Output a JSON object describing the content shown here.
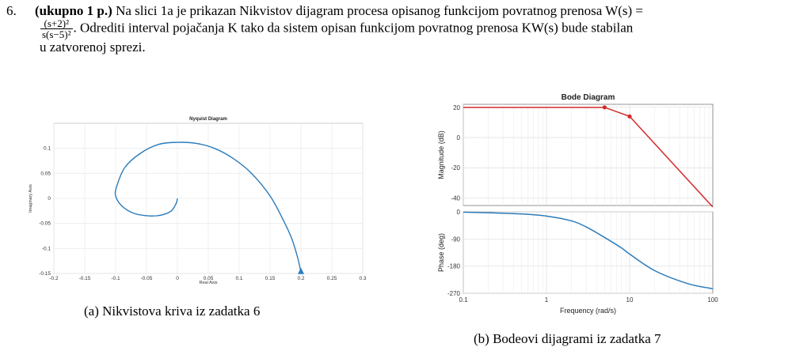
{
  "problem": {
    "number": "6.",
    "points": "(ukupno 1 p.)",
    "text1": "Na slici 1a je prikazan Nikvistov dijagram procesa opisanog funkcijom povratnog prenosa W(s) =",
    "frac_num": "(s+2)²",
    "frac_den": "s(s−5)²",
    "text2": ". Odrediti interval pojačanja K tako da sistem opisan funkcijom povratnog prenosa KW(s) bude stabilan",
    "text3": "u zatvorenoj sprezi."
  },
  "captions": {
    "a": "(a) Nikvistova kriva iz zadatka 6",
    "b": "(b) Bodeovi dijagrami iz zadatka 7"
  },
  "chart_data": [
    {
      "type": "line",
      "title": "Nyquist Diagram",
      "xlabel": "Real Axis",
      "ylabel": "Imaginary Axis",
      "xlim": [
        -0.2,
        0.3
      ],
      "ylim": [
        -0.15,
        0.15
      ],
      "xticks": [
        "-0.2",
        "-0.15",
        "-0.1",
        "-0.05",
        "0",
        "0.05",
        "0.1",
        "0.15",
        "0.2",
        "0.25",
        "0.3"
      ],
      "yticks": [
        "-0.15",
        "-0.1",
        "-0.05",
        "0",
        "0.05",
        "0.1"
      ],
      "color": "#2b7bba",
      "series": [
        {
          "x": [
            0,
            -0.002,
            -0.01,
            -0.025,
            -0.045,
            -0.07,
            -0.09,
            -0.1,
            -0.098,
            -0.085,
            -0.06,
            -0.03,
            0,
            0.03,
            0.06,
            0.09,
            0.12,
            0.15,
            0.17,
            0.185,
            0.195,
            0.2
          ],
          "y": [
            0,
            -0.01,
            -0.025,
            -0.033,
            -0.035,
            -0.03,
            -0.015,
            0.005,
            0.025,
            0.062,
            0.09,
            0.108,
            0.112,
            0.11,
            0.1,
            0.08,
            0.05,
            0.005,
            -0.04,
            -0.08,
            -0.12,
            -0.148
          ]
        }
      ]
    },
    {
      "type": "line",
      "title": "Bode Diagram",
      "xlabel": "Frequency  (rad/s)",
      "xscale": "log",
      "xlim": [
        0.1,
        100
      ],
      "xticks": [
        "0.1",
        "1",
        "10",
        "100"
      ],
      "panels": [
        {
          "ylabel": "Magnitude (dB)",
          "ylim": [
            -45,
            22
          ],
          "yticks": [
            "20",
            "0",
            "-20",
            "-40"
          ],
          "series": [
            {
              "color": "#d42a2a",
              "x": [
                0.1,
                5,
                10,
                100
              ],
              "y": [
                20,
                20,
                14,
                -46
              ]
            }
          ],
          "markers": [
            {
              "x": 5,
              "y": 20
            },
            {
              "x": 10,
              "y": 14
            }
          ]
        },
        {
          "ylabel": "Phase (deg)",
          "ylim": [
            -270,
            0
          ],
          "yticks": [
            "0",
            "-90",
            "-180",
            "-270"
          ],
          "series": [
            {
              "color": "#2b7bba",
              "x": [
                0.1,
                0.2,
                0.5,
                1,
                2,
                3,
                5,
                8,
                10,
                20,
                50,
                100
              ],
              "y": [
                -1,
                -3,
                -7,
                -14,
                -30,
                -50,
                -85,
                -120,
                -140,
                -195,
                -238,
                -255
              ]
            }
          ]
        }
      ]
    }
  ]
}
